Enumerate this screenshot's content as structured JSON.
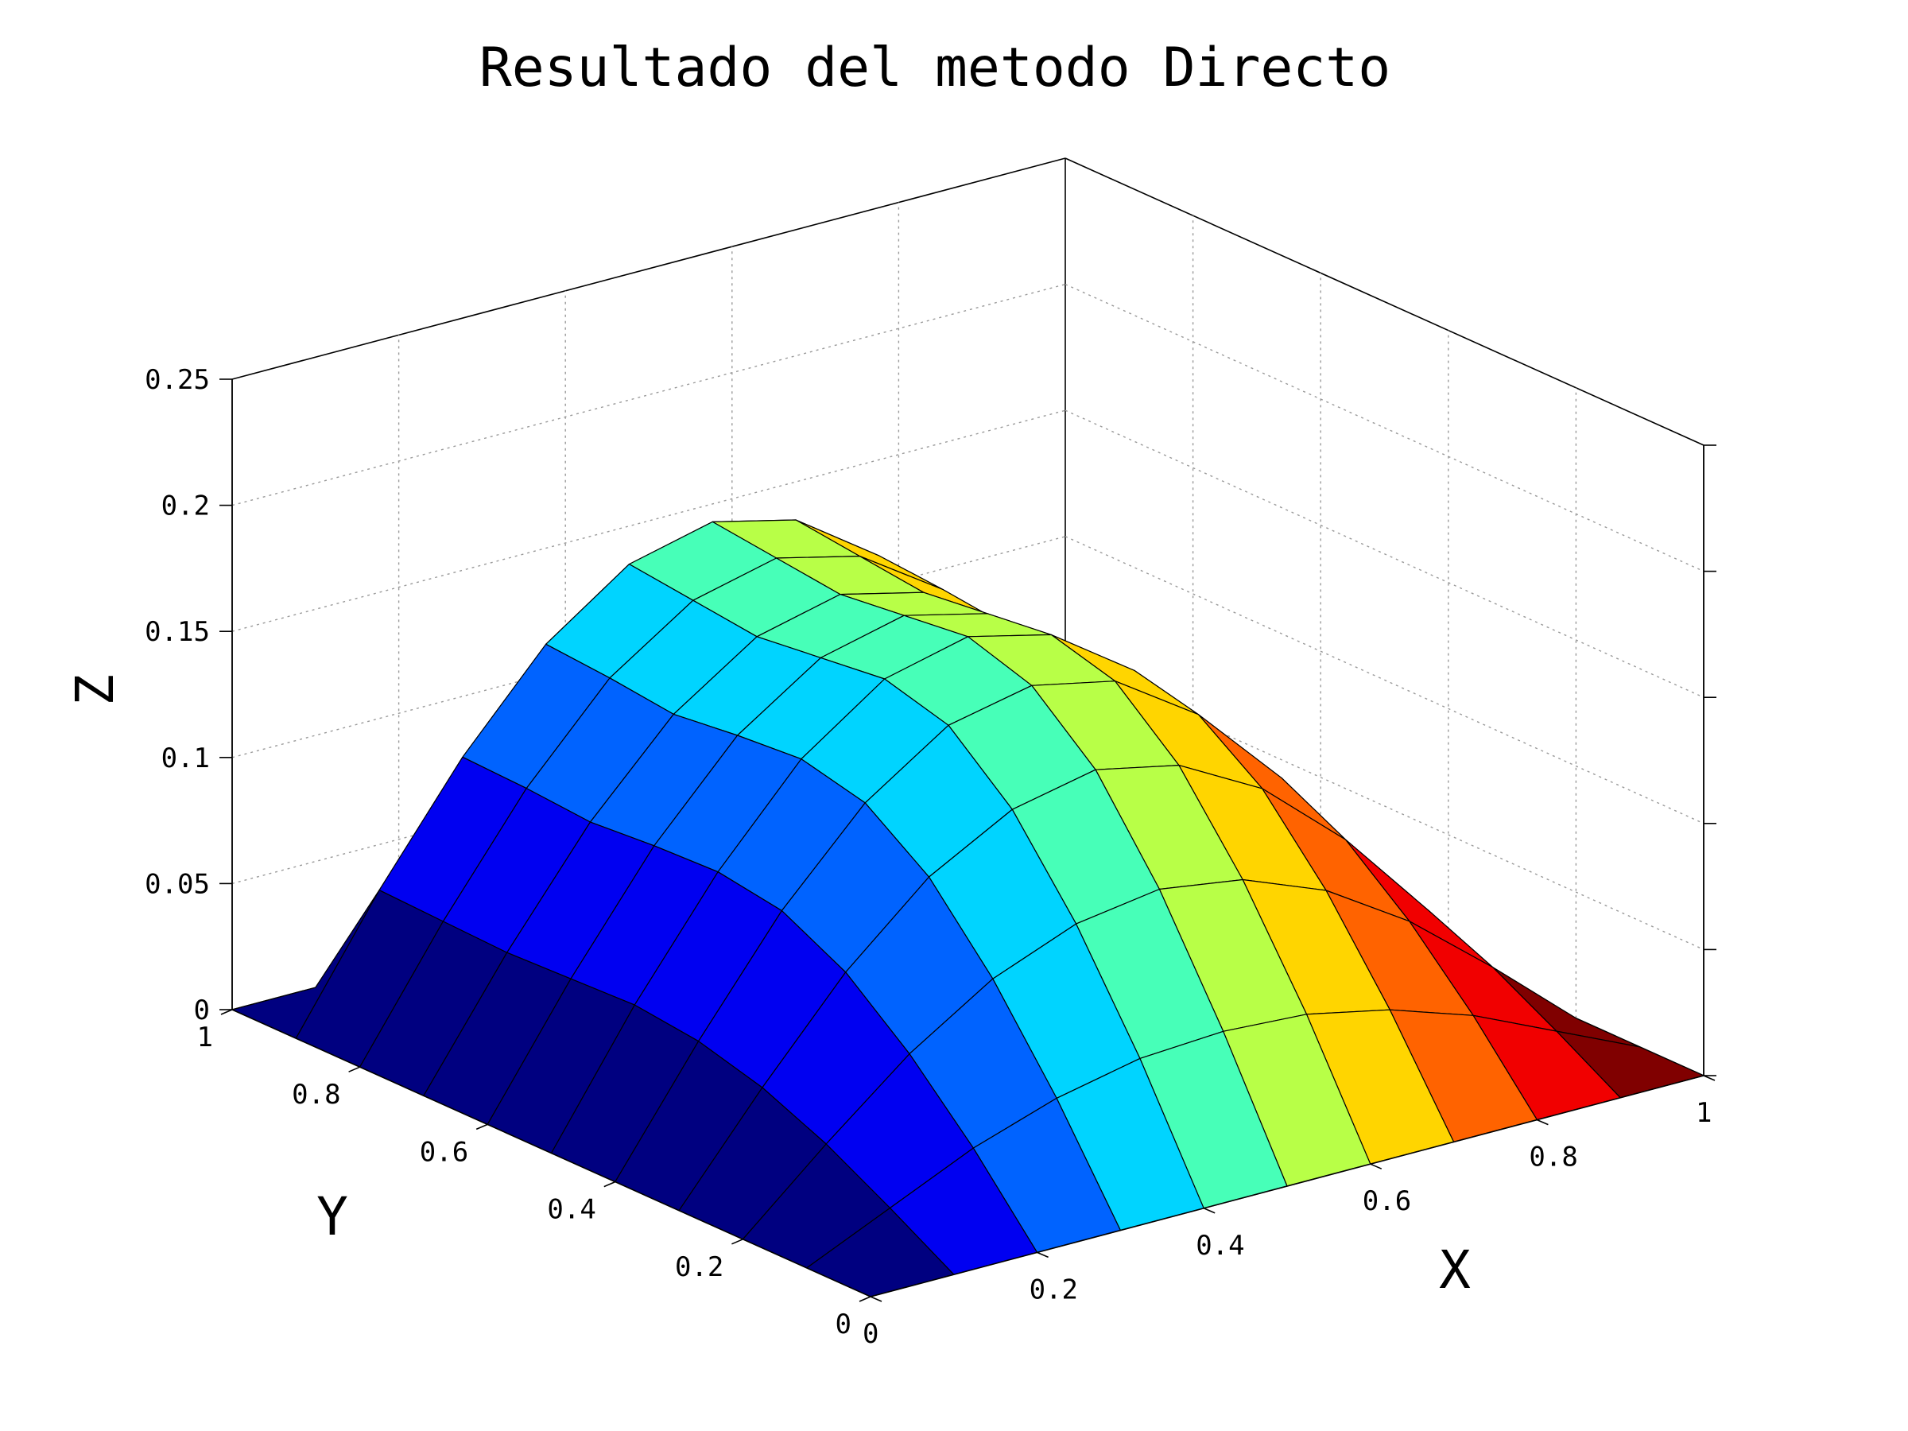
{
  "chart_data": {
    "type": "surface",
    "title": "Resultado del metodo Directo",
    "xlabel": "X",
    "ylabel": "Y",
    "zlabel": "Z",
    "xlim": [
      0,
      1
    ],
    "ylim": [
      0,
      1
    ],
    "zlim": [
      0,
      0.25
    ],
    "x_ticks": [
      "0",
      "0.2",
      "0.4",
      "0.6",
      "0.8",
      "1"
    ],
    "y_ticks": [
      "0",
      "0.2",
      "0.4",
      "0.6",
      "0.8",
      "1"
    ],
    "z_ticks": [
      "0",
      "0.05",
      "0.1",
      "0.15",
      "0.2",
      "0.25"
    ],
    "grid": true,
    "colormap": "jet",
    "x": [
      0,
      0.1,
      0.2,
      0.3,
      0.4,
      0.5,
      0.6,
      0.7,
      0.8,
      0.9,
      1.0
    ],
    "y": [
      0,
      0.1,
      0.2,
      0.3,
      0.4,
      0.5,
      0.6,
      0.7,
      0.8,
      0.9,
      1.0
    ],
    "z_rows_by_y": [
      [
        0.0,
        0.0,
        0.0,
        0.0,
        0.0,
        0.0,
        0.0,
        0.0,
        0.0,
        0.0,
        0.0
      ],
      [
        0.0,
        0.015,
        0.03,
        0.041,
        0.048,
        0.05,
        0.048,
        0.041,
        0.03,
        0.015,
        0.0
      ],
      [
        0.0,
        0.029,
        0.056,
        0.077,
        0.09,
        0.095,
        0.09,
        0.077,
        0.056,
        0.029,
        0.0
      ],
      [
        0.0,
        0.04,
        0.077,
        0.106,
        0.124,
        0.131,
        0.124,
        0.106,
        0.077,
        0.04,
        0.0
      ],
      [
        0.0,
        0.047,
        0.09,
        0.124,
        0.146,
        0.153,
        0.146,
        0.124,
        0.09,
        0.047,
        0.0
      ],
      [
        0.0,
        0.05,
        0.094,
        0.13,
        0.153,
        0.161,
        0.153,
        0.13,
        0.094,
        0.05,
        0.0
      ],
      [
        0.0,
        0.049,
        0.093,
        0.128,
        0.15,
        0.158,
        0.15,
        0.128,
        0.093,
        0.049,
        0.0
      ],
      [
        0.0,
        0.048,
        0.091,
        0.125,
        0.147,
        0.155,
        0.147,
        0.125,
        0.091,
        0.048,
        0.0
      ],
      [
        0.0,
        0.049,
        0.093,
        0.128,
        0.15,
        0.158,
        0.15,
        0.128,
        0.093,
        0.049,
        0.0
      ],
      [
        0.0,
        0.05,
        0.094,
        0.13,
        0.153,
        0.161,
        0.153,
        0.13,
        0.094,
        0.05,
        0.0
      ],
      [
        0.0,
        0.0,
        0.0,
        0.0,
        0.0,
        0.0,
        0.0,
        0.0,
        0.0,
        0.0,
        0.0
      ]
    ]
  }
}
